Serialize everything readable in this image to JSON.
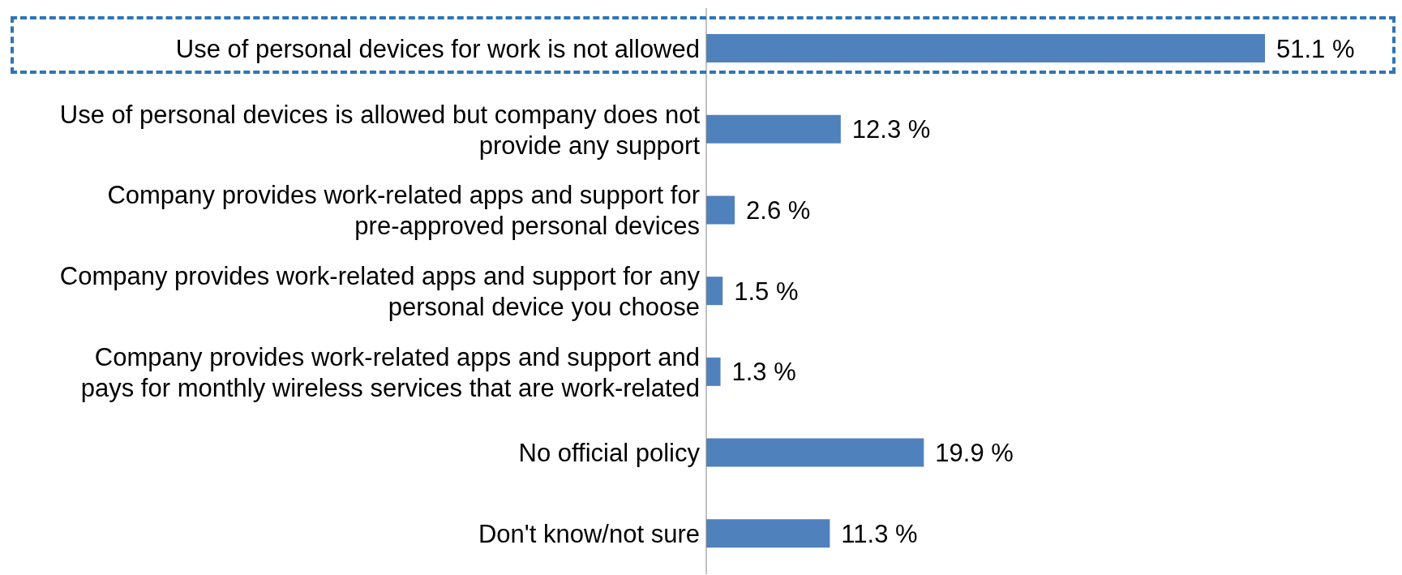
{
  "chart_data": {
    "type": "bar",
    "orientation": "horizontal",
    "categories": [
      "Use of personal devices for work is not allowed",
      "Use of personal devices is allowed but company does not provide any support",
      "Company provides work-related apps and support for pre-approved personal devices",
      "Company provides work-related apps and support for any personal device you choose",
      "Company provides work-related apps and support and pays for monthly wireless services that are work-related",
      "No official policy",
      "Don't know/not sure"
    ],
    "values": [
      51.1,
      12.3,
      2.6,
      1.5,
      1.3,
      19.9,
      11.3
    ],
    "value_labels": [
      "51.1 %",
      "12.3 %",
      "2.6 %",
      "1.5 %",
      "1.3 %",
      "19.9 %",
      "11.3 %"
    ],
    "color": "#4f81bd"
  }
}
